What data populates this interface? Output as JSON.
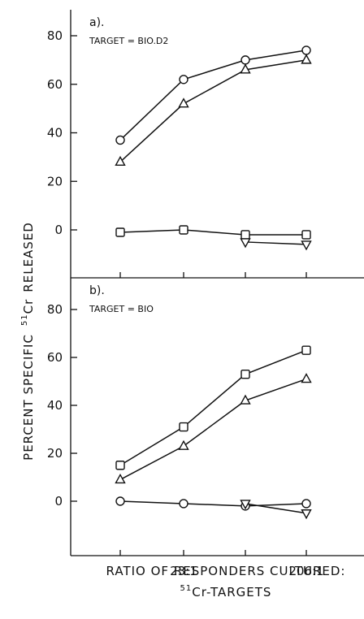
{
  "chart_data": [
    {
      "type": "line",
      "panel_label": "a).",
      "target_text": "TARGET = BIO.D2",
      "x_categories": [
        "",
        "23:1",
        "",
        "206:1"
      ],
      "ylim": [
        -15,
        90
      ],
      "yticks": [
        0,
        20,
        40,
        60,
        80
      ],
      "series": [
        {
          "marker": "circle",
          "values": [
            37,
            62,
            70,
            74
          ]
        },
        {
          "marker": "triangle-up",
          "values": [
            28,
            52,
            66,
            70
          ]
        },
        {
          "marker": "square",
          "values": [
            -1,
            0,
            -2,
            -2
          ]
        },
        {
          "marker": "triangle-down",
          "values": [
            null,
            null,
            -5,
            -6
          ]
        }
      ]
    },
    {
      "type": "line",
      "panel_label": "b).",
      "target_text": "TARGET = BIO",
      "x_categories": [
        "",
        "23:1",
        "",
        "206:1"
      ],
      "ylim": [
        -15,
        90
      ],
      "yticks": [
        0,
        20,
        40,
        60,
        80
      ],
      "series": [
        {
          "marker": "square",
          "values": [
            15,
            31,
            53,
            63
          ]
        },
        {
          "marker": "triangle-up",
          "values": [
            9,
            23,
            42,
            51
          ]
        },
        {
          "marker": "circle",
          "values": [
            0,
            -1,
            -2,
            -1
          ]
        },
        {
          "marker": "triangle-down",
          "values": [
            null,
            null,
            -1,
            -5
          ]
        }
      ]
    }
  ],
  "ylabel_prefix": "PERCENT SPECIFIC",
  "ylabel_sup": "51",
  "ylabel_element": "Cr",
  "ylabel_suffix": "RELEASED",
  "xlabel_line1": "RATIO OF RESPONDERS CULTURED:",
  "xlabel_line2_sup": "51",
  "xlabel_line2_rest": "Cr-TARGETS"
}
